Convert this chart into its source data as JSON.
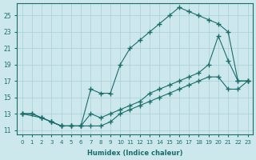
{
  "xlabel": "Humidex (Indice chaleur)",
  "ylabel": "",
  "bg_color": "#cce8ec",
  "grid_color": "#aacdd4",
  "line_color": "#1a6e6a",
  "xlim": [
    -0.5,
    23.5
  ],
  "ylim": [
    10.5,
    26.5
  ],
  "xticks": [
    0,
    1,
    2,
    3,
    4,
    5,
    6,
    7,
    8,
    9,
    10,
    11,
    12,
    13,
    14,
    15,
    16,
    17,
    18,
    19,
    20,
    21,
    22,
    23
  ],
  "yticks": [
    11,
    13,
    15,
    17,
    19,
    21,
    23,
    25
  ],
  "line1_x": [
    0,
    1,
    2,
    3,
    4,
    5,
    6,
    7,
    8,
    9,
    10,
    11,
    12,
    13,
    14,
    15,
    16,
    17,
    18,
    19,
    20,
    21,
    22,
    23
  ],
  "line1_y": [
    13,
    13,
    12.5,
    12,
    11.5,
    11.5,
    11.5,
    16,
    15.5,
    15.5,
    19,
    21,
    22,
    23,
    24,
    25,
    26,
    25.5,
    25,
    24.5,
    24,
    23,
    17,
    17
  ],
  "line2_x": [
    0,
    2,
    3,
    4,
    5,
    6,
    7,
    8,
    9,
    10,
    11,
    12,
    13,
    14,
    15,
    16,
    17,
    18,
    19,
    20,
    21,
    22,
    23
  ],
  "line2_y": [
    13,
    12.5,
    12,
    11.5,
    11.5,
    11.5,
    13,
    12.5,
    13,
    13.5,
    14,
    14.5,
    15.5,
    16,
    16.5,
    17,
    17.5,
    18,
    19,
    22.5,
    19.5,
    17,
    17
  ],
  "line3_x": [
    0,
    1,
    2,
    3,
    4,
    5,
    6,
    7,
    8,
    9,
    10,
    11,
    12,
    13,
    14,
    15,
    16,
    17,
    18,
    19,
    20,
    21,
    22,
    23
  ],
  "line3_y": [
    13,
    13,
    12.5,
    12,
    11.5,
    11.5,
    11.5,
    11.5,
    11.5,
    12,
    13,
    13.5,
    14,
    14.5,
    15,
    15.5,
    16,
    16.5,
    17,
    17.5,
    17.5,
    16,
    16,
    17
  ]
}
